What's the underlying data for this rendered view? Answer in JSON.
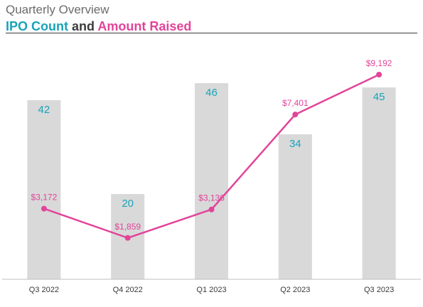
{
  "header": {
    "subtitle": "Quarterly Overview",
    "title_part1": "IPO Count",
    "title_join": "and",
    "title_part2": "Amount Raised"
  },
  "colors": {
    "bar": "#d9d9d9",
    "count": "#1aa3b8",
    "amount": "#e2449a",
    "axis": "#3c3c3c"
  },
  "chart_data": {
    "type": "bar",
    "title": "IPO Count and Amount Raised",
    "subtitle": "Quarterly Overview",
    "categories": [
      "Q3 2022",
      "Q4 2022",
      "Q1 2023",
      "Q2 2023",
      "Q3 2023"
    ],
    "series": [
      {
        "name": "IPO Count",
        "type": "bar",
        "values": [
          42,
          20,
          46,
          34,
          45
        ],
        "labels": [
          "42",
          "20",
          "46",
          "34",
          "45"
        ]
      },
      {
        "name": "Amount Raised",
        "type": "line",
        "values": [
          3172,
          1859,
          3136,
          7401,
          9192
        ],
        "labels": [
          "$3,172",
          "$1,859",
          "$3,136",
          "$7,401",
          "$9,192"
        ]
      }
    ],
    "grid": false,
    "legend": "none"
  }
}
